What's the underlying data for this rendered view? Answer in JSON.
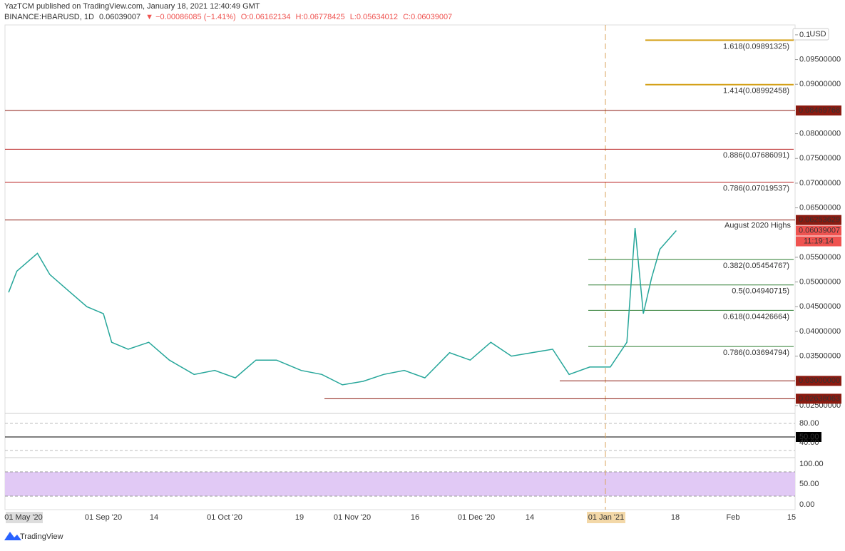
{
  "header": {
    "publisher": "YazTCM published on TradingView.com, January 18, 2021 12:40:49 GMT",
    "symbol": "BINANCE:HBARUSD, 1D",
    "last": "0.06039007",
    "change": "▼ −0.00086085 (−1.41%)",
    "open": "O:0.06162134",
    "high": "H:0.06778425",
    "low": "L:0.05634012",
    "close": "C:0.06039007"
  },
  "chart_data": {
    "type": "line",
    "currency": "USD",
    "ylim": [
      0.0237,
      0.102
    ],
    "yticks": [
      0.1,
      {
        "value": 0.095,
        "label": "0.09500000"
      },
      {
        "value": 0.09,
        "label": "0.09000000"
      },
      {
        "value": 0.08,
        "label": "0.08000000"
      },
      {
        "value": 0.075,
        "label": "0.07500000"
      },
      {
        "value": 0.07,
        "label": "0.07000000"
      },
      {
        "value": 0.065,
        "label": "0.06500000"
      },
      {
        "value": 0.055,
        "label": "0.05500000"
      },
      {
        "value": 0.05,
        "label": "0.05000000"
      },
      {
        "value": 0.045,
        "label": "0.04500000"
      },
      {
        "value": 0.04,
        "label": "0.04000000"
      },
      {
        "value": 0.035,
        "label": "0.03500000"
      },
      {
        "value": 0.025,
        "label": "0.02500000"
      }
    ],
    "price_labels": [
      {
        "value": 0.08469768,
        "label": "0.08469768",
        "color": "#8b1a10"
      },
      {
        "value": 0.06253629,
        "label": "0.06253629",
        "color": "#8b1a10"
      },
      {
        "value": 0.06039007,
        "label": "0.06039007",
        "color": "#ef5350"
      },
      {
        "value": 0.03,
        "label": "0.03000000",
        "color": "#8b1a10"
      },
      {
        "value": 0.02638063,
        "label": "0.02638063",
        "color": "#8b1a10"
      }
    ],
    "countdown": "11:19:14",
    "resistance": [
      {
        "value": 0.08469768
      },
      {
        "value": 0.06253629,
        "label": "August 2020 Highs"
      },
      {
        "value": 0.03
      },
      {
        "value": 0.02638063
      }
    ],
    "fib_levels": [
      {
        "value": 0.09891325,
        "label": "1.618(0.09891325)",
        "color": "#d4a017"
      },
      {
        "value": 0.08992458,
        "label": "1.414(0.08992458)",
        "color": "#d4a017"
      },
      {
        "value": 0.07686091,
        "label": "0.886(0.07686091)",
        "color": "#b71c1c"
      },
      {
        "value": 0.07019537,
        "label": "0.786(0.07019537)",
        "color": "#b71c1c"
      },
      {
        "value": 0.05454767,
        "label": "0.382(0.05454767)",
        "color": "#2e7d32"
      },
      {
        "value": 0.04940715,
        "label": "0.5(0.04940715)",
        "color": "#2e7d32"
      },
      {
        "value": 0.04426664,
        "label": "0.618(0.04426664)",
        "color": "#2e7d32"
      },
      {
        "value": 0.03694794,
        "label": "0.786(0.03694794)",
        "color": "#2e7d32"
      }
    ],
    "x": [
      "2020-08-09",
      "2020-08-11",
      "2020-08-16",
      "2020-08-19",
      "2020-08-23",
      "2020-08-28",
      "2020-09-01",
      "2020-09-03",
      "2020-09-07",
      "2020-09-12",
      "2020-09-17",
      "2020-09-23",
      "2020-09-28",
      "2020-10-03",
      "2020-10-08",
      "2020-10-13",
      "2020-10-19",
      "2020-10-24",
      "2020-10-29",
      "2020-11-03",
      "2020-11-08",
      "2020-11-13",
      "2020-11-18",
      "2020-11-24",
      "2020-11-29",
      "2020-12-04",
      "2020-12-09",
      "2020-12-14",
      "2020-12-19",
      "2020-12-23",
      "2020-12-28",
      "2021-01-02",
      "2021-01-06",
      "2021-01-08",
      "2021-01-10",
      "2021-01-12",
      "2021-01-14",
      "2021-01-18"
    ],
    "series": [
      {
        "name": "HBARUSD",
        "color": "#26a69a",
        "values": [
          0.0479,
          0.0522,
          0.0558,
          0.0515,
          0.0486,
          0.045,
          0.0436,
          0.0378,
          0.0364,
          0.0378,
          0.0342,
          0.0313,
          0.0321,
          0.0306,
          0.0342,
          0.0342,
          0.0321,
          0.0313,
          0.0292,
          0.0299,
          0.0313,
          0.0321,
          0.0306,
          0.0357,
          0.0342,
          0.0378,
          0.035,
          0.0357,
          0.0364,
          0.0313,
          0.0328,
          0.0328,
          0.0378,
          0.0609,
          0.0436,
          0.0508,
          0.0566,
          0.0604
        ]
      }
    ],
    "time_labels": [
      "01 May '20",
      "01 Sep '20",
      "14",
      "01 Oct '20",
      "19",
      "01 Nov '20",
      "16",
      "01 Dec '20",
      "14",
      "01 Jan '21",
      "18",
      "Feb",
      "15"
    ],
    "rsi_labels": [
      "80.00",
      "50.00",
      "40.00"
    ],
    "stoch_labels": [
      "100.00",
      "50.00",
      "0.00"
    ]
  },
  "footer": {
    "brand": "TradingView"
  }
}
